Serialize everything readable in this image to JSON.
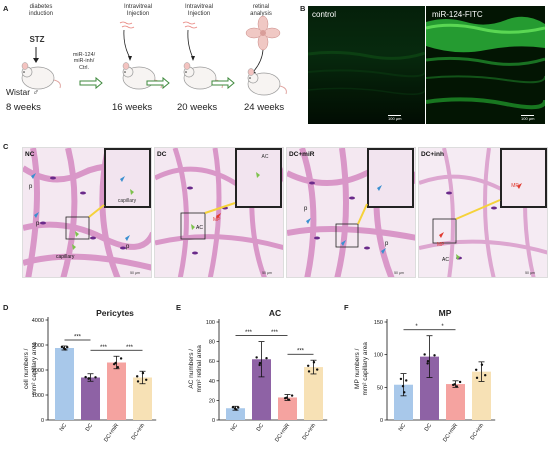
{
  "panels": {
    "A": "A",
    "B": "B",
    "C": "C",
    "D": "D",
    "E": "E",
    "F": "F"
  },
  "timeline": {
    "steps": [
      {
        "label": "diabetes\ninduction",
        "week": "8 weeks"
      },
      {
        "label": "Intravitreal\nInjection",
        "week": "16 weeks"
      },
      {
        "label": "Intravitreal\nInjection",
        "week": "20 weeks"
      },
      {
        "label": "retinal\nanalysis",
        "week": "24 weeks"
      }
    ],
    "stz": "STZ",
    "strain": "Wistar ♂",
    "injection_agents": "miR-124/\nmiR-inh/\nCtrl."
  },
  "fluorescence": {
    "left_label": "control",
    "right_label": "miR-124-FITC",
    "scale_left": "100 µm",
    "scale_right": "100 µm"
  },
  "histology": {
    "panels": [
      {
        "title": "NC",
        "scale": "50 µm",
        "inset_label": "capillary"
      },
      {
        "title": "DC",
        "scale": "50 µm",
        "inset_label": "AC"
      },
      {
        "title": "DC+miR",
        "scale": "50 µm",
        "inset_label": ""
      },
      {
        "title": "DC+inh",
        "scale": "50 µm",
        "inset_label": "MP"
      }
    ],
    "marker_labels": {
      "p": "p",
      "capillary": "capillary",
      "AC": "AC",
      "MP": "MP"
    }
  },
  "colors": {
    "nc": "#a8c8ea",
    "dc": "#8e62a5",
    "dc_mir": "#f5a3a0",
    "dc_inh": "#f7e1b5",
    "pericyte_arrow": "#3a8fd0",
    "ac_arrow": "#7dc24c",
    "mp_arrow": "#e03a2f",
    "fluor_green": "#39b54a",
    "inset_border": "#222222",
    "connector": "#f5d23a",
    "timeline_arrow": "#3f8a3d"
  },
  "chart_data": [
    {
      "type": "bar",
      "title": "Pericytes",
      "ylabel": "cell numbers /\nmm² capillary area",
      "categories": [
        "NC",
        "DC",
        "DC+miR",
        "DC+inh"
      ],
      "values": [
        2880,
        1700,
        2300,
        1700
      ],
      "errors": [
        80,
        150,
        250,
        250
      ],
      "ylim": [
        0,
        4000
      ],
      "yticks": [
        0,
        1000,
        2000,
        3000,
        4000
      ],
      "significance": [
        {
          "from": 0,
          "to": 1,
          "label": "***"
        },
        {
          "from": 1,
          "to": 2,
          "label": "***"
        },
        {
          "from": 2,
          "to": 3,
          "label": "***"
        }
      ]
    },
    {
      "type": "bar",
      "title": "AC",
      "ylabel": "AC numbers /\nmm² retinal area",
      "categories": [
        "NC",
        "DC",
        "DC+miR",
        "DC+inh"
      ],
      "values": [
        12,
        62,
        23,
        54
      ],
      "errors": [
        2,
        18,
        3,
        7
      ],
      "ylim": [
        0,
        100
      ],
      "yticks": [
        0,
        20,
        40,
        60,
        80,
        100
      ],
      "significance": [
        {
          "from": 0,
          "to": 1,
          "label": "***"
        },
        {
          "from": 1,
          "to": 2,
          "label": "***"
        },
        {
          "from": 2,
          "to": 3,
          "label": "***"
        }
      ]
    },
    {
      "type": "bar",
      "title": "MP",
      "ylabel": "MP numbers /\nmm² capillary area",
      "categories": [
        "NC",
        "DC",
        "DC+miR",
        "DC+inh"
      ],
      "values": [
        54,
        97,
        55,
        74
      ],
      "errors": [
        17,
        32,
        5,
        15
      ],
      "ylim": [
        0,
        150
      ],
      "yticks": [
        0,
        50,
        100,
        150
      ],
      "significance": [
        {
          "from": 0,
          "to": 1,
          "label": "*"
        },
        {
          "from": 1,
          "to": 2,
          "label": "*"
        }
      ]
    }
  ]
}
